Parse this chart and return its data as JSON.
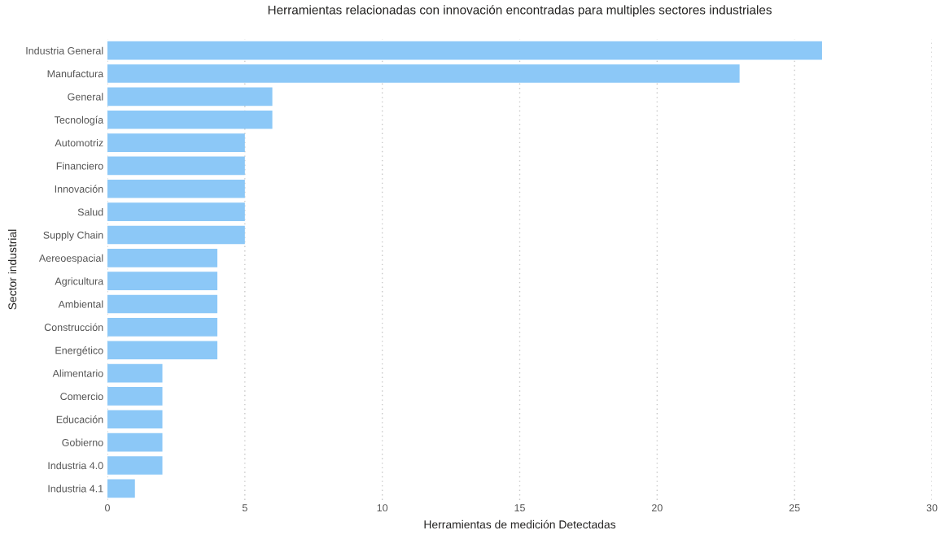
{
  "chart_data": {
    "type": "bar",
    "orientation": "horizontal",
    "title": "Herramientas relacionadas con innovación encontradas para multiples sectores industriales",
    "xlabel": "Herramientas de medición Detectadas",
    "ylabel": "Sector industrial",
    "categories": [
      "Industria General",
      "Manufactura",
      "General",
      "Tecnología",
      "Automotriz",
      "Financiero",
      "Innovación",
      "Salud",
      "Supply Chain",
      "Aereoespacial",
      "Agricultura",
      "Ambiental",
      "Construcción",
      "Energético",
      "Alimentario",
      "Comercio",
      "Educación",
      "Gobierno",
      "Industria 4.0",
      "Industria 4.1"
    ],
    "values": [
      26,
      23,
      6,
      6,
      5,
      5,
      5,
      5,
      5,
      4,
      4,
      4,
      4,
      4,
      2,
      2,
      2,
      2,
      2,
      1
    ],
    "color": "#8cc8f7",
    "xlim": [
      0,
      30
    ],
    "xticks": [
      0,
      5,
      10,
      15,
      20,
      25,
      30
    ],
    "grid": "x"
  }
}
